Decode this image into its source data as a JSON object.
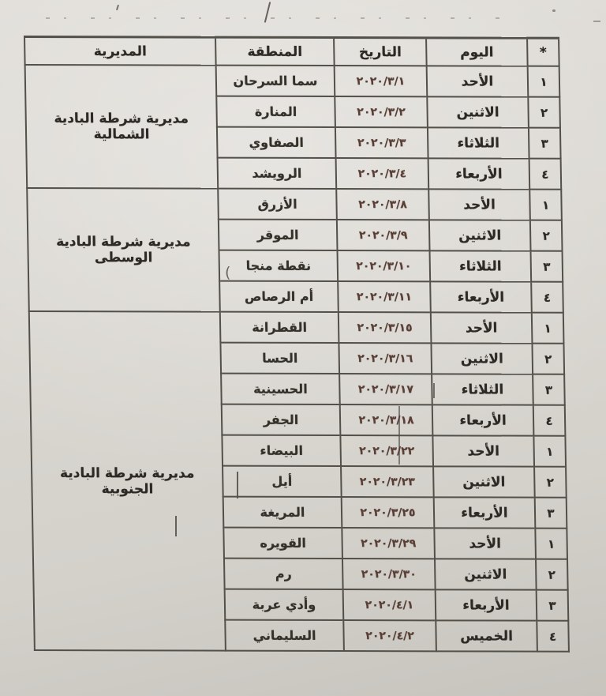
{
  "table": {
    "columns": {
      "num": "*",
      "day": "اليوم",
      "date": "التاريخ",
      "region": "المنطقة",
      "directorate": "المديرية"
    },
    "groups": [
      {
        "directorate": "مديرية شرطة البادية الشمالية",
        "rows": [
          {
            "num": "١",
            "day": "الأحد",
            "date": "٢٠٢٠/٣/١",
            "region": "سما السرحان"
          },
          {
            "num": "٢",
            "day": "الاثنين",
            "date": "٢٠٢٠/٣/٢",
            "region": "المنارة"
          },
          {
            "num": "٣",
            "day": "الثلاثاء",
            "date": "٢٠٢٠/٣/٣",
            "region": "الصفاوي"
          },
          {
            "num": "٤",
            "day": "الأربعاء",
            "date": "٢٠٢٠/٣/٤",
            "region": "الرويشد"
          }
        ]
      },
      {
        "directorate": "مديرية شرطة البادية الوسطى",
        "rows": [
          {
            "num": "١",
            "day": "الأحد",
            "date": "٢٠٢٠/٣/٨",
            "region": "الأزرق"
          },
          {
            "num": "٢",
            "day": "الاثنين",
            "date": "٢٠٢٠/٣/٩",
            "region": "الموقر"
          },
          {
            "num": "٣",
            "day": "الثلاثاء",
            "date": "٢٠٢٠/٣/١٠",
            "region": "نقطة منجا"
          },
          {
            "num": "٤",
            "day": "الأربعاء",
            "date": "٢٠٢٠/٣/١١",
            "region": "أم الرصاص"
          }
        ]
      },
      {
        "directorate": "مديرية شرطة البادية الجنوبية",
        "rows": [
          {
            "num": "١",
            "day": "الأحد",
            "date": "٢٠٢٠/٣/١٥",
            "region": "القطرانة"
          },
          {
            "num": "٢",
            "day": "الاثنين",
            "date": "٢٠٢٠/٣/١٦",
            "region": "الحسا"
          },
          {
            "num": "٣",
            "day": "الثلاثاء",
            "date": "٢٠٢٠/٣/١٧",
            "region": "الحسينية"
          },
          {
            "num": "٤",
            "day": "الأربعاء",
            "date": "٢٠٢٠/٣/١٨",
            "region": "الجفر"
          },
          {
            "num": "١",
            "day": "الأحد",
            "date": "٢٠٢٠/٣/٢٢",
            "region": "البيضاء"
          },
          {
            "num": "٢",
            "day": "الاثنين",
            "date": "٢٠٢٠/٣/٢٣",
            "region": "أيل"
          },
          {
            "num": "٣",
            "day": "الأربعاء",
            "date": "٢٠٢٠/٣/٢٥",
            "region": "المريغة"
          },
          {
            "num": "١",
            "day": "الأحد",
            "date": "٢٠٢٠/٣/٢٩",
            "region": "القويره"
          },
          {
            "num": "٢",
            "day": "الاثنين",
            "date": "٢٠٢٠/٣/٣٠",
            "region": "رم"
          },
          {
            "num": "٣",
            "day": "الأربعاء",
            "date": "٢٠٢٠/٤/١",
            "region": "وأدي عربة"
          },
          {
            "num": "٤",
            "day": "الخميس",
            "date": "٢٠٢٠/٤/٢",
            "region": "السليماني"
          }
        ]
      }
    ],
    "colors": {
      "paper": "#d9d6d0",
      "line": "#53504a",
      "text": "#2d2a26",
      "date_text": "#5a3e35"
    },
    "artifacts": {
      "paren_mark": "("
    }
  }
}
